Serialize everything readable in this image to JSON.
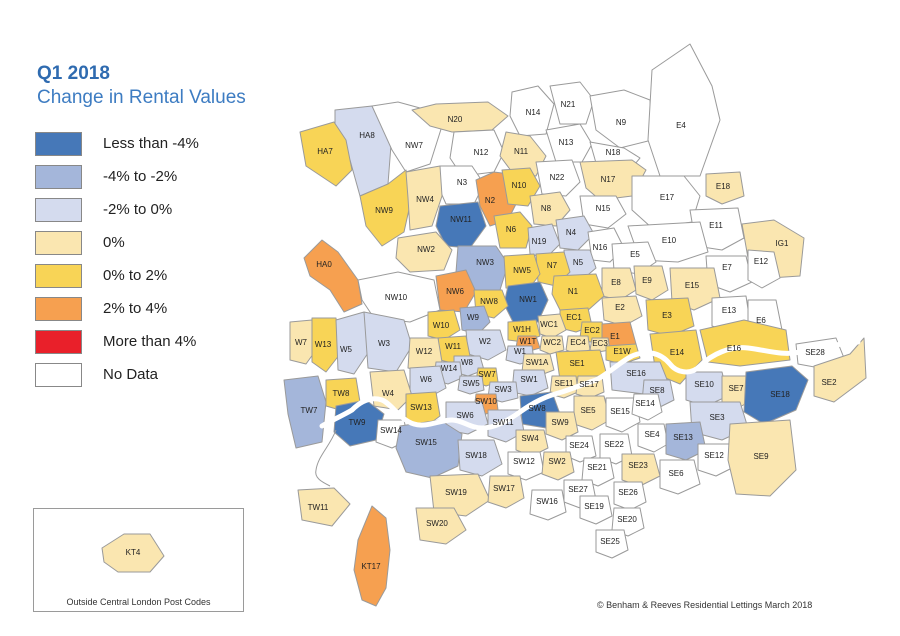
{
  "header": {
    "title": "Q1 2018",
    "subtitle": "Change in Rental Values"
  },
  "legend": [
    {
      "key": "lt-4",
      "label": "Less than -4%",
      "color": "#4678b8"
    },
    {
      "key": "-4to-2",
      "label": "-4% to -2%",
      "color": "#a4b6da"
    },
    {
      "key": "-2to0",
      "label": "-2% to 0%",
      "color": "#d4dbee"
    },
    {
      "key": "zero",
      "label": "0%",
      "color": "#fae6b0"
    },
    {
      "key": "0to2",
      "label": "0% to 2%",
      "color": "#f8d456"
    },
    {
      "key": "2to4",
      "label": "2% to 4%",
      "color": "#f6a050"
    },
    {
      "key": "gt4",
      "label": "More than 4%",
      "color": "#e9202a"
    },
    {
      "key": "none",
      "label": "No Data",
      "color": "#ffffff"
    }
  ],
  "districts": [
    {
      "code": "HA8",
      "band": "-2to0"
    },
    {
      "code": "HA7",
      "band": "0to2"
    },
    {
      "code": "NW7",
      "band": "none"
    },
    {
      "code": "N20",
      "band": "zero"
    },
    {
      "code": "N14",
      "band": "none"
    },
    {
      "code": "N21",
      "band": "none"
    },
    {
      "code": "N9",
      "band": "none"
    },
    {
      "code": "E4",
      "band": "none"
    },
    {
      "code": "N12",
      "band": "none"
    },
    {
      "code": "N11",
      "band": "zero"
    },
    {
      "code": "N13",
      "band": "none"
    },
    {
      "code": "N18",
      "band": "none"
    },
    {
      "code": "N3",
      "band": "none"
    },
    {
      "code": "N2",
      "band": "2to4"
    },
    {
      "code": "N10",
      "band": "0to2"
    },
    {
      "code": "N22",
      "band": "none"
    },
    {
      "code": "N17",
      "band": "zero"
    },
    {
      "code": "E18",
      "band": "zero"
    },
    {
      "code": "NW9",
      "band": "0to2"
    },
    {
      "code": "NW4",
      "band": "zero"
    },
    {
      "code": "NW11",
      "band": "lt-4"
    },
    {
      "code": "N8",
      "band": "zero"
    },
    {
      "code": "N15",
      "band": "none"
    },
    {
      "code": "E17",
      "band": "none"
    },
    {
      "code": "N6",
      "band": "0to2"
    },
    {
      "code": "N19",
      "band": "-2to0"
    },
    {
      "code": "N4",
      "band": "-2to0"
    },
    {
      "code": "N16",
      "band": "none"
    },
    {
      "code": "E11",
      "band": "none"
    },
    {
      "code": "IG1",
      "band": "zero"
    },
    {
      "code": "E10",
      "band": "none"
    },
    {
      "code": "NW2",
      "band": "zero"
    },
    {
      "code": "HA0",
      "band": "2to4"
    },
    {
      "code": "NW3",
      "band": "-4to-2"
    },
    {
      "code": "N5",
      "band": "-2to0"
    },
    {
      "code": "E5",
      "band": "none"
    },
    {
      "code": "E7",
      "band": "none"
    },
    {
      "code": "E12",
      "band": "none"
    },
    {
      "code": "N7",
      "band": "0to2"
    },
    {
      "code": "NW5",
      "band": "0to2"
    },
    {
      "code": "NW6",
      "band": "2to4"
    },
    {
      "code": "E8",
      "band": "zero"
    },
    {
      "code": "E9",
      "band": "zero"
    },
    {
      "code": "E15",
      "band": "zero"
    },
    {
      "code": "NW10",
      "band": "none"
    },
    {
      "code": "N1",
      "band": "0to2"
    },
    {
      "code": "NW1",
      "band": "lt-4"
    },
    {
      "code": "NW8",
      "band": "0to2"
    },
    {
      "code": "E13",
      "band": "none"
    },
    {
      "code": "E2",
      "band": "zero"
    },
    {
      "code": "E3",
      "band": "0to2"
    },
    {
      "code": "E6",
      "band": "none"
    },
    {
      "code": "W9",
      "band": "-4to-2"
    },
    {
      "code": "W10",
      "band": "0to2"
    },
    {
      "code": "EC1",
      "band": "0to2"
    },
    {
      "code": "W7",
      "band": "zero"
    },
    {
      "code": "W13",
      "band": "0to2"
    },
    {
      "code": "W5",
      "band": "-2to0"
    },
    {
      "code": "W3",
      "band": "-2to0"
    },
    {
      "code": "W1H",
      "band": "0to2"
    },
    {
      "code": "WC1",
      "band": "zero"
    },
    {
      "code": "EC2",
      "band": "0to2"
    },
    {
      "code": "E1",
      "band": "2to4"
    },
    {
      "code": "W2",
      "band": "-2to0"
    },
    {
      "code": "W11",
      "band": "0to2"
    },
    {
      "code": "W1T",
      "band": "2to4"
    },
    {
      "code": "WC2",
      "band": "zero"
    },
    {
      "code": "EC4",
      "band": "zero"
    },
    {
      "code": "EC3",
      "band": "zero"
    },
    {
      "code": "E1W",
      "band": "0to2"
    },
    {
      "code": "E14",
      "band": "0to2"
    },
    {
      "code": "E16",
      "band": "0to2"
    },
    {
      "code": "W12",
      "band": "zero"
    },
    {
      "code": "W1",
      "band": "-2to0"
    },
    {
      "code": "SE28",
      "band": "none"
    },
    {
      "code": "W8",
      "band": "-2to0"
    },
    {
      "code": "W14",
      "band": "-2to0"
    },
    {
      "code": "SW1A",
      "band": "zero"
    },
    {
      "code": "SE1",
      "band": "0to2"
    },
    {
      "code": "W6",
      "band": "-2to0"
    },
    {
      "code": "SW7",
      "band": "0to2"
    },
    {
      "code": "SW5",
      "band": "-2to0"
    },
    {
      "code": "SW1",
      "band": "-2to0"
    },
    {
      "code": "SE11",
      "band": "zero"
    },
    {
      "code": "SE17",
      "band": "zero"
    },
    {
      "code": "SE16",
      "band": "-2to0"
    },
    {
      "code": "SE2",
      "band": "zero"
    },
    {
      "code": "W4",
      "band": "zero"
    },
    {
      "code": "SW3",
      "band": "-2to0"
    },
    {
      "code": "SE8",
      "band": "-2to0"
    },
    {
      "code": "SE10",
      "band": "-2to0"
    },
    {
      "code": "SE7",
      "band": "zero"
    },
    {
      "code": "TW8",
      "band": "0to2"
    },
    {
      "code": "SW10",
      "band": "2to4"
    },
    {
      "code": "SE18",
      "band": "lt-4"
    },
    {
      "code": "TW7",
      "band": "-4to-2"
    },
    {
      "code": "SW13",
      "band": "0to2"
    },
    {
      "code": "SW6",
      "band": "-2to0"
    },
    {
      "code": "SW8",
      "band": "lt-4"
    },
    {
      "code": "SE5",
      "band": "zero"
    },
    {
      "code": "SE15",
      "band": "none"
    },
    {
      "code": "SE14",
      "band": "none"
    },
    {
      "code": "SE3",
      "band": "-2to0"
    },
    {
      "code": "TW9",
      "band": "lt-4"
    },
    {
      "code": "SW14",
      "band": "none"
    },
    {
      "code": "SW11",
      "band": "-2to0"
    },
    {
      "code": "SW9",
      "band": "zero"
    },
    {
      "code": "SE4",
      "band": "none"
    },
    {
      "code": "SE13",
      "band": "-4to-2"
    },
    {
      "code": "SW4",
      "band": "zero"
    },
    {
      "code": "SE24",
      "band": "none"
    },
    {
      "code": "SE22",
      "band": "none"
    },
    {
      "code": "SW15",
      "band": "-4to-2"
    },
    {
      "code": "SW18",
      "band": "-2to0"
    },
    {
      "code": "SE12",
      "band": "none"
    },
    {
      "code": "SE9",
      "band": "zero"
    },
    {
      "code": "SW12",
      "band": "none"
    },
    {
      "code": "SW2",
      "band": "zero"
    },
    {
      "code": "SE21",
      "band": "none"
    },
    {
      "code": "SE23",
      "band": "zero"
    },
    {
      "code": "SE6",
      "band": "none"
    },
    {
      "code": "SW19",
      "band": "zero"
    },
    {
      "code": "SW17",
      "band": "zero"
    },
    {
      "code": "SE27",
      "band": "none"
    },
    {
      "code": "SE26",
      "band": "none"
    },
    {
      "code": "TW11",
      "band": "zero"
    },
    {
      "code": "SW16",
      "band": "none"
    },
    {
      "code": "SE19",
      "band": "none"
    },
    {
      "code": "SE20",
      "band": "none"
    },
    {
      "code": "SW20",
      "band": "zero"
    },
    {
      "code": "SE25",
      "band": "none"
    },
    {
      "code": "KT17",
      "band": "2to4"
    },
    {
      "code": "KT4",
      "band": "zero"
    }
  ],
  "inset": {
    "caption": "Outside Central London Post Codes"
  },
  "footer": {
    "copyright": "© Benham & Reeves Residential Lettings March 2018"
  }
}
